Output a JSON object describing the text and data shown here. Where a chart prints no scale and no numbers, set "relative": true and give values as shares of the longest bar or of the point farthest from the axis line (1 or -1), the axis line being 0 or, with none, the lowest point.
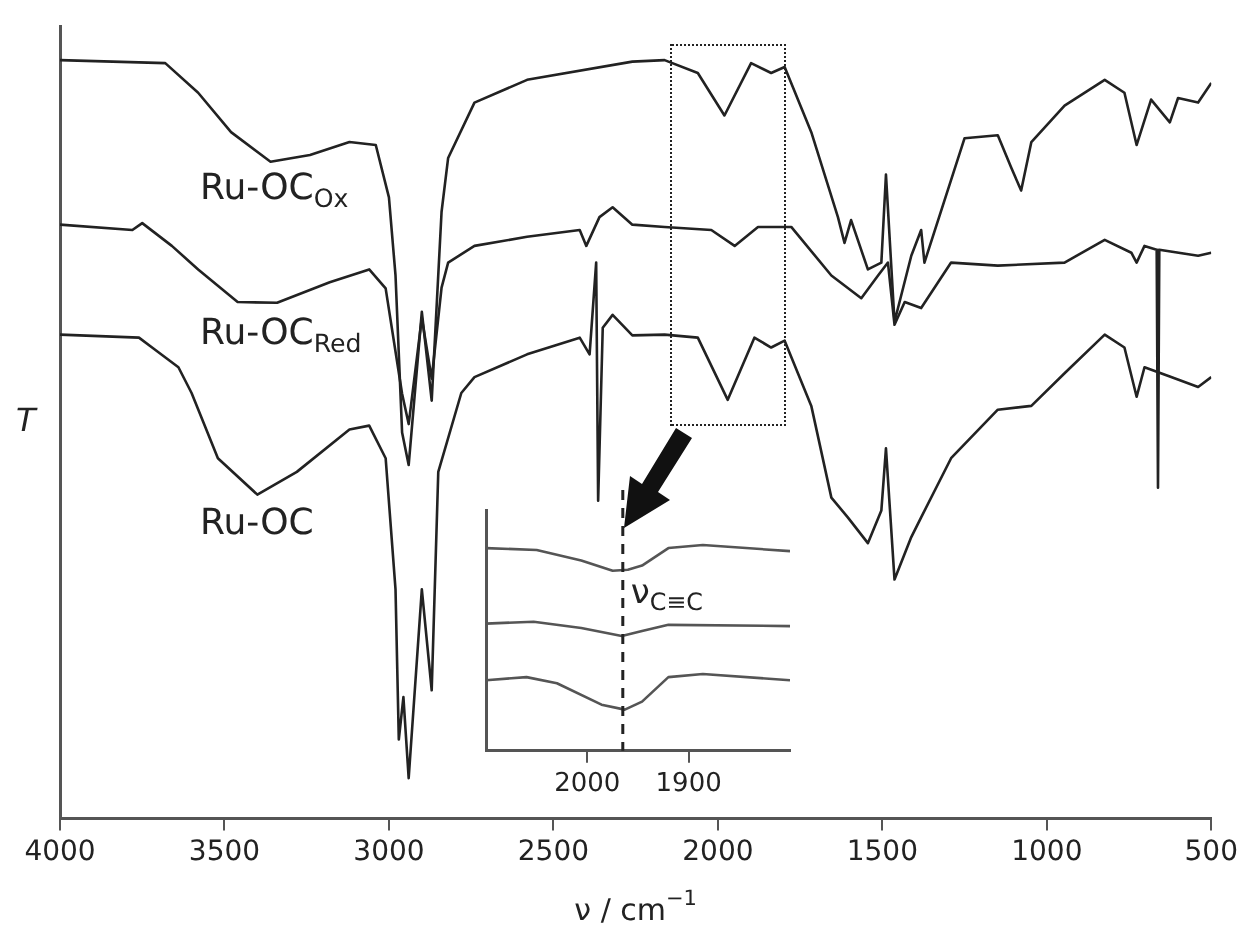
{
  "chart_data": [
    {
      "type": "line",
      "relative": true,
      "xlabel": "ν / cm$^{−1}$",
      "ylabel": "T",
      "xlim": [
        4000,
        500
      ],
      "xticks": [
        4000,
        3500,
        3000,
        2500,
        2000,
        1500,
        1000,
        500
      ],
      "grid": false,
      "marker": "none",
      "series": [
        {
          "name": "Ru-OC$_{Ox}$",
          "color": "#222222",
          "x": [
            4000,
            3680,
            3580,
            3480,
            3360,
            3240,
            3120,
            3040,
            3000,
            2980,
            2960,
            2940,
            2900,
            2870,
            2840,
            2820,
            2740,
            2580,
            2260,
            2162,
            2061,
            1980,
            1899,
            1838,
            1797,
            1716,
            1635,
            1615,
            1595,
            1544,
            1503,
            1489,
            1463,
            1412,
            1382,
            1372,
            1250,
            1149,
            1108,
            1078,
            1047,
            946,
            824,
            764,
            727,
            683,
            626,
            601,
            540,
            500
          ],
          "values": [
            1.0,
            0.996,
            0.957,
            0.905,
            0.866,
            0.875,
            0.892,
            0.888,
            0.819,
            0.716,
            0.509,
            0.466,
            0.668,
            0.551,
            0.8,
            0.871,
            0.944,
            0.974,
            0.998,
            1.0,
            0.983,
            0.927,
            0.996,
            0.983,
            0.991,
            0.905,
            0.793,
            0.759,
            0.789,
            0.724,
            0.733,
            0.849,
            0.655,
            0.742,
            0.776,
            0.733,
            0.897,
            0.901,
            0.858,
            0.828,
            0.892,
            0.94,
            0.974,
            0.957,
            0.888,
            0.948,
            0.918,
            0.95,
            0.944,
            0.97
          ]
        },
        {
          "name": "Ru-OC$_{Red}$",
          "color": "#222222",
          "x": [
            4000,
            3780,
            3750,
            3660,
            3580,
            3460,
            3340,
            3180,
            3060,
            3010,
            2960,
            2940,
            2900,
            2870,
            2840,
            2820,
            2740,
            2580,
            2420,
            2400,
            2360,
            2320,
            2260,
            2162,
            2020,
            1949,
            1878,
            1777,
            1655,
            1564,
            1513,
            1483,
            1463,
            1432,
            1382,
            1291,
            1149,
            946,
            824,
            743,
            727,
            703,
            666,
            662,
            658,
            540,
            500
          ],
          "values": [
            0.783,
            0.776,
            0.785,
            0.755,
            0.724,
            0.681,
            0.68,
            0.707,
            0.724,
            0.699,
            0.56,
            0.52,
            0.66,
            0.58,
            0.7,
            0.733,
            0.755,
            0.767,
            0.776,
            0.755,
            0.793,
            0.806,
            0.783,
            0.78,
            0.776,
            0.755,
            0.78,
            0.78,
            0.716,
            0.686,
            0.716,
            0.733,
            0.651,
            0.681,
            0.673,
            0.733,
            0.729,
            0.733,
            0.763,
            0.746,
            0.733,
            0.755,
            0.75,
            0.436,
            0.75,
            0.742,
            0.746
          ]
        },
        {
          "name": "Ru-OC",
          "color": "#222222",
          "x": [
            4000,
            3760,
            3720,
            3640,
            3600,
            3520,
            3400,
            3280,
            3120,
            3060,
            3010,
            2980,
            2970,
            2956,
            2940,
            2900,
            2870,
            2850,
            2780,
            2740,
            2580,
            2420,
            2390,
            2370,
            2364,
            2350,
            2320,
            2260,
            2162,
            2061,
            1970,
            1889,
            1838,
            1797,
            1716,
            1655,
            1605,
            1544,
            1503,
            1489,
            1463,
            1412,
            1382,
            1291,
            1149,
            1047,
            946,
            824,
            764,
            727,
            703,
            622,
            540,
            500
          ],
          "values": [
            0.638,
            0.634,
            0.621,
            0.595,
            0.561,
            0.475,
            0.427,
            0.457,
            0.513,
            0.518,
            0.475,
            0.302,
            0.104,
            0.16,
            0.053,
            0.302,
            0.169,
            0.457,
            0.561,
            0.582,
            0.612,
            0.634,
            0.612,
            0.733,
            0.419,
            0.647,
            0.664,
            0.637,
            0.638,
            0.634,
            0.552,
            0.634,
            0.621,
            0.63,
            0.544,
            0.423,
            0.397,
            0.363,
            0.406,
            0.488,
            0.315,
            0.371,
            0.397,
            0.475,
            0.539,
            0.544,
            0.587,
            0.638,
            0.621,
            0.556,
            0.595,
            0.582,
            0.569,
            0.582
          ]
        }
      ]
    },
    {
      "type": "line",
      "relative": true,
      "xlim": [
        2100,
        1800
      ],
      "xticks": [
        2000,
        1900
      ],
      "grid": false,
      "marker": "none",
      "ref_lines": [
        {
          "axis": "x",
          "value": 1965,
          "label": "ν$_{C≡C}$",
          "line_style": "dashed",
          "color": "#222222"
        }
      ],
      "series": [
        {
          "color": "#555555",
          "x": [
            2100,
            2050,
            2006,
            1975,
            1960,
            1946,
            1920,
            1886,
            1800
          ],
          "values": [
            0.985,
            0.976,
            0.925,
            0.875,
            0.88,
            0.9,
            0.985,
            1.0,
            0.97
          ]
        },
        {
          "color": "#555555",
          "x": [
            2100,
            2053,
            2006,
            1966,
            1946,
            1920,
            1800
          ],
          "values": [
            0.618,
            0.627,
            0.597,
            0.558,
            0.582,
            0.612,
            0.606
          ]
        },
        {
          "color": "#555555",
          "x": [
            2100,
            2060,
            2030,
            1986,
            1963,
            1946,
            1920,
            1886,
            1800
          ],
          "values": [
            0.343,
            0.358,
            0.328,
            0.224,
            0.2,
            0.239,
            0.358,
            0.373,
            0.343
          ]
        }
      ]
    }
  ]
}
